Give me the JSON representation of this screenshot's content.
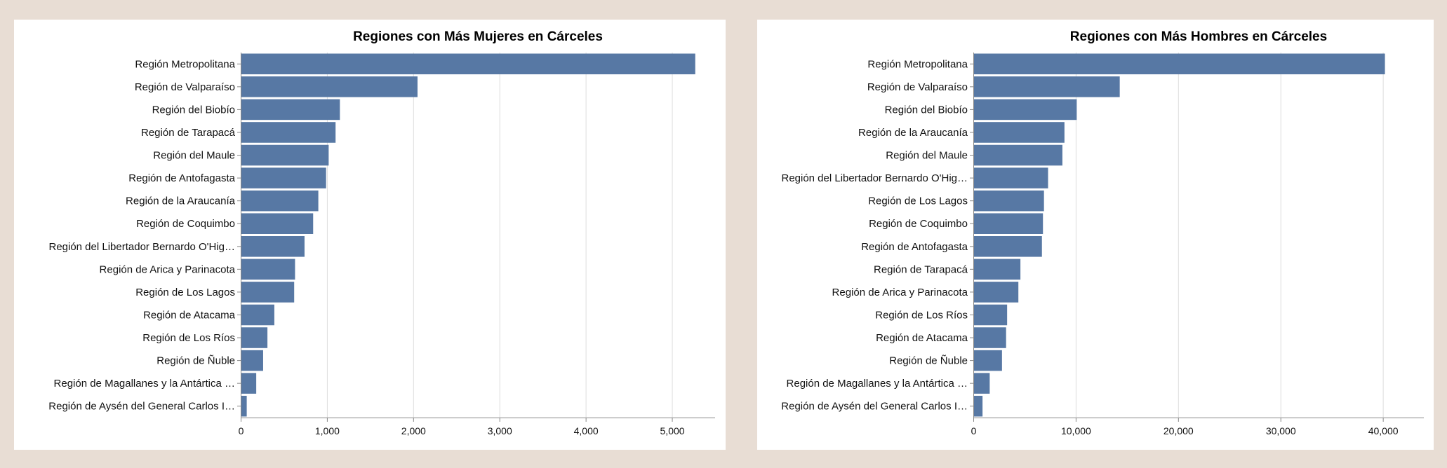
{
  "chart_data": [
    {
      "type": "bar",
      "orientation": "horizontal",
      "title": "Regiones con Más Mujeres en Cárceles",
      "categories": [
        "Región Metropolitana",
        "Región de Valparaíso",
        "Región del Biobío",
        "Región de Tarapacá",
        "Región del Maule",
        "Región de Antofagasta",
        "Región de la Araucanía",
        "Región de Coquimbo",
        "Región del Libertador Bernardo O'Hig…",
        "Región de Arica y Parinacota",
        "Región de Los Lagos",
        "Región de Atacama",
        "Región de Los Ríos",
        "Región de Ñuble",
        "Región de Magallanes y la Antártica …",
        "Región de Aysén del General Carlos I…"
      ],
      "values": [
        5270,
        2050,
        1150,
        1100,
        1020,
        990,
        900,
        840,
        740,
        630,
        620,
        390,
        310,
        260,
        180,
        70
      ],
      "xlim": [
        0,
        5500
      ],
      "xticks": [
        0,
        1000,
        2000,
        3000,
        4000,
        5000
      ],
      "xtick_labels": [
        "0",
        "1,000",
        "2,000",
        "3,000",
        "4,000",
        "5,000"
      ],
      "grid": true,
      "bar_color": "#5778a4"
    },
    {
      "type": "bar",
      "orientation": "horizontal",
      "title": "Regiones con Más Hombres en Cárceles",
      "categories": [
        "Región Metropolitana",
        "Región de Valparaíso",
        "Región del Biobío",
        "Región de la Araucanía",
        "Región del Maule",
        "Región del Libertador Bernardo O'Hig…",
        "Región de Los Lagos",
        "Región de Coquimbo",
        "Región de Antofagasta",
        "Región de Tarapacá",
        "Región de Arica y Parinacota",
        "Región de Los Ríos",
        "Región de Atacama",
        "Región de Ñuble",
        "Región de Magallanes y la Antártica …",
        "Región de Aysén del General Carlos I…"
      ],
      "values": [
        40200,
        14300,
        10100,
        8900,
        8700,
        7300,
        6900,
        6800,
        6700,
        4600,
        4400,
        3300,
        3200,
        2800,
        1600,
        900
      ],
      "xlim": [
        0,
        44000
      ],
      "xticks": [
        0,
        10000,
        20000,
        30000,
        40000
      ],
      "xtick_labels": [
        "0",
        "10,000",
        "20,000",
        "30,000",
        "40,000"
      ],
      "grid": true,
      "bar_color": "#5778a4"
    }
  ]
}
